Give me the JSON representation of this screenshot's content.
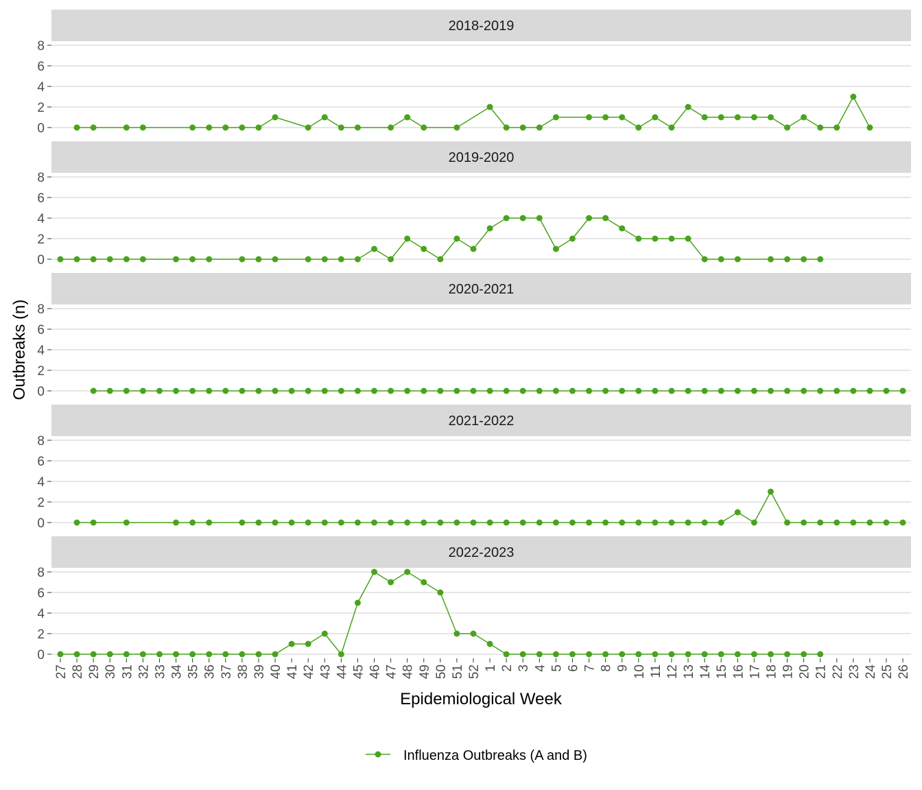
{
  "chart_data": {
    "type": "line",
    "xlabel": "Epidemiological Week",
    "ylabel": "Outbreaks (n)",
    "categories": [
      "27",
      "28",
      "29",
      "30",
      "31",
      "32",
      "33",
      "34",
      "35",
      "36",
      "37",
      "38",
      "39",
      "40",
      "41",
      "42",
      "43",
      "44",
      "45",
      "46",
      "47",
      "48",
      "49",
      "50",
      "51",
      "52",
      "1",
      "2",
      "3",
      "4",
      "5",
      "6",
      "7",
      "8",
      "9",
      "10",
      "11",
      "12",
      "13",
      "14",
      "15",
      "16",
      "17",
      "18",
      "19",
      "20",
      "21",
      "22",
      "23",
      "24",
      "25",
      "26"
    ],
    "ylim": [
      0,
      8
    ],
    "yticks": [
      "0",
      "2",
      "4",
      "6",
      "8"
    ],
    "grid": true,
    "legend": "bottom",
    "series_color": "#4aa31d",
    "legend_label": "Influenza Outbreaks (A and B)",
    "panels": [
      {
        "label": "2018-2019",
        "points": [
          [
            "28",
            0
          ],
          [
            "29",
            0
          ],
          [
            "31",
            0
          ],
          [
            "32",
            0
          ],
          [
            "35",
            0
          ],
          [
            "36",
            0
          ],
          [
            "37",
            0
          ],
          [
            "38",
            0
          ],
          [
            "39",
            0
          ],
          [
            "40",
            1
          ],
          [
            "42",
            0
          ],
          [
            "43",
            1
          ],
          [
            "44",
            0
          ],
          [
            "45",
            0
          ],
          [
            "47",
            0
          ],
          [
            "48",
            1
          ],
          [
            "49",
            0
          ],
          [
            "51",
            0
          ],
          [
            "1",
            2
          ],
          [
            "2",
            0
          ],
          [
            "3",
            0
          ],
          [
            "4",
            0
          ],
          [
            "5",
            1
          ],
          [
            "7",
            1
          ],
          [
            "8",
            1
          ],
          [
            "9",
            1
          ],
          [
            "10",
            0
          ],
          [
            "11",
            1
          ],
          [
            "12",
            0
          ],
          [
            "13",
            2
          ],
          [
            "14",
            1
          ],
          [
            "15",
            1
          ],
          [
            "16",
            1
          ],
          [
            "17",
            1
          ],
          [
            "18",
            1
          ],
          [
            "19",
            0
          ],
          [
            "20",
            1
          ],
          [
            "21",
            0
          ],
          [
            "22",
            0
          ],
          [
            "23",
            3
          ],
          [
            "24",
            0
          ]
        ]
      },
      {
        "label": "2019-2020",
        "points": [
          [
            "27",
            0
          ],
          [
            "28",
            0
          ],
          [
            "29",
            0
          ],
          [
            "30",
            0
          ],
          [
            "31",
            0
          ],
          [
            "32",
            0
          ],
          [
            "34",
            0
          ],
          [
            "35",
            0
          ],
          [
            "36",
            0
          ],
          [
            "38",
            0
          ],
          [
            "39",
            0
          ],
          [
            "40",
            0
          ],
          [
            "42",
            0
          ],
          [
            "43",
            0
          ],
          [
            "44",
            0
          ],
          [
            "45",
            0
          ],
          [
            "46",
            1
          ],
          [
            "47",
            0
          ],
          [
            "48",
            2
          ],
          [
            "49",
            1
          ],
          [
            "50",
            0
          ],
          [
            "51",
            2
          ],
          [
            "52",
            1
          ],
          [
            "1",
            3
          ],
          [
            "2",
            4
          ],
          [
            "3",
            4
          ],
          [
            "4",
            4
          ],
          [
            "5",
            1
          ],
          [
            "6",
            2
          ],
          [
            "7",
            4
          ],
          [
            "8",
            4
          ],
          [
            "9",
            3
          ],
          [
            "10",
            2
          ],
          [
            "11",
            2
          ],
          [
            "12",
            2
          ],
          [
            "13",
            2
          ],
          [
            "14",
            0
          ],
          [
            "15",
            0
          ],
          [
            "16",
            0
          ],
          [
            "18",
            0
          ],
          [
            "19",
            0
          ],
          [
            "20",
            0
          ],
          [
            "21",
            0
          ]
        ]
      },
      {
        "label": "2020-2021",
        "points": [
          [
            "29",
            0
          ],
          [
            "30",
            0
          ],
          [
            "31",
            0
          ],
          [
            "32",
            0
          ],
          [
            "33",
            0
          ],
          [
            "34",
            0
          ],
          [
            "35",
            0
          ],
          [
            "36",
            0
          ],
          [
            "37",
            0
          ],
          [
            "38",
            0
          ],
          [
            "39",
            0
          ],
          [
            "40",
            0
          ],
          [
            "41",
            0
          ],
          [
            "42",
            0
          ],
          [
            "43",
            0
          ],
          [
            "44",
            0
          ],
          [
            "45",
            0
          ],
          [
            "46",
            0
          ],
          [
            "47",
            0
          ],
          [
            "48",
            0
          ],
          [
            "49",
            0
          ],
          [
            "50",
            0
          ],
          [
            "51",
            0
          ],
          [
            "52",
            0
          ],
          [
            "1",
            0
          ],
          [
            "2",
            0
          ],
          [
            "3",
            0
          ],
          [
            "4",
            0
          ],
          [
            "5",
            0
          ],
          [
            "6",
            0
          ],
          [
            "7",
            0
          ],
          [
            "8",
            0
          ],
          [
            "9",
            0
          ],
          [
            "10",
            0
          ],
          [
            "11",
            0
          ],
          [
            "12",
            0
          ],
          [
            "13",
            0
          ],
          [
            "14",
            0
          ],
          [
            "15",
            0
          ],
          [
            "16",
            0
          ],
          [
            "17",
            0
          ],
          [
            "18",
            0
          ],
          [
            "19",
            0
          ],
          [
            "20",
            0
          ],
          [
            "21",
            0
          ],
          [
            "22",
            0
          ],
          [
            "23",
            0
          ],
          [
            "24",
            0
          ],
          [
            "25",
            0
          ],
          [
            "26",
            0
          ]
        ]
      },
      {
        "label": "2021-2022",
        "points": [
          [
            "28",
            0
          ],
          [
            "29",
            0
          ],
          [
            "31",
            0
          ],
          [
            "34",
            0
          ],
          [
            "35",
            0
          ],
          [
            "36",
            0
          ],
          [
            "38",
            0
          ],
          [
            "39",
            0
          ],
          [
            "40",
            0
          ],
          [
            "41",
            0
          ],
          [
            "42",
            0
          ],
          [
            "43",
            0
          ],
          [
            "44",
            0
          ],
          [
            "45",
            0
          ],
          [
            "46",
            0
          ],
          [
            "47",
            0
          ],
          [
            "48",
            0
          ],
          [
            "49",
            0
          ],
          [
            "50",
            0
          ],
          [
            "51",
            0
          ],
          [
            "52",
            0
          ],
          [
            "1",
            0
          ],
          [
            "2",
            0
          ],
          [
            "3",
            0
          ],
          [
            "4",
            0
          ],
          [
            "5",
            0
          ],
          [
            "6",
            0
          ],
          [
            "7",
            0
          ],
          [
            "8",
            0
          ],
          [
            "9",
            0
          ],
          [
            "10",
            0
          ],
          [
            "11",
            0
          ],
          [
            "12",
            0
          ],
          [
            "13",
            0
          ],
          [
            "14",
            0
          ],
          [
            "15",
            0
          ],
          [
            "16",
            1
          ],
          [
            "17",
            0
          ],
          [
            "18",
            3
          ],
          [
            "19",
            0
          ],
          [
            "20",
            0
          ],
          [
            "21",
            0
          ],
          [
            "22",
            0
          ],
          [
            "23",
            0
          ],
          [
            "24",
            0
          ],
          [
            "25",
            0
          ],
          [
            "26",
            0
          ]
        ]
      },
      {
        "label": "2022-2023",
        "points": [
          [
            "27",
            0
          ],
          [
            "28",
            0
          ],
          [
            "29",
            0
          ],
          [
            "30",
            0
          ],
          [
            "31",
            0
          ],
          [
            "32",
            0
          ],
          [
            "33",
            0
          ],
          [
            "34",
            0
          ],
          [
            "35",
            0
          ],
          [
            "36",
            0
          ],
          [
            "37",
            0
          ],
          [
            "38",
            0
          ],
          [
            "39",
            0
          ],
          [
            "40",
            0
          ],
          [
            "41",
            1
          ],
          [
            "42",
            1
          ],
          [
            "43",
            2
          ],
          [
            "44",
            0
          ],
          [
            "45",
            5
          ],
          [
            "46",
            8
          ],
          [
            "47",
            7
          ],
          [
            "48",
            8
          ],
          [
            "49",
            7
          ],
          [
            "50",
            6
          ],
          [
            "51",
            2
          ],
          [
            "52",
            2
          ],
          [
            "1",
            1
          ],
          [
            "2",
            0
          ],
          [
            "3",
            0
          ],
          [
            "4",
            0
          ],
          [
            "5",
            0
          ],
          [
            "6",
            0
          ],
          [
            "7",
            0
          ],
          [
            "8",
            0
          ],
          [
            "9",
            0
          ],
          [
            "10",
            0
          ],
          [
            "11",
            0
          ],
          [
            "12",
            0
          ],
          [
            "13",
            0
          ],
          [
            "14",
            0
          ],
          [
            "15",
            0
          ],
          [
            "16",
            0
          ],
          [
            "17",
            0
          ],
          [
            "18",
            0
          ],
          [
            "19",
            0
          ],
          [
            "20",
            0
          ],
          [
            "21",
            0
          ]
        ]
      }
    ]
  }
}
